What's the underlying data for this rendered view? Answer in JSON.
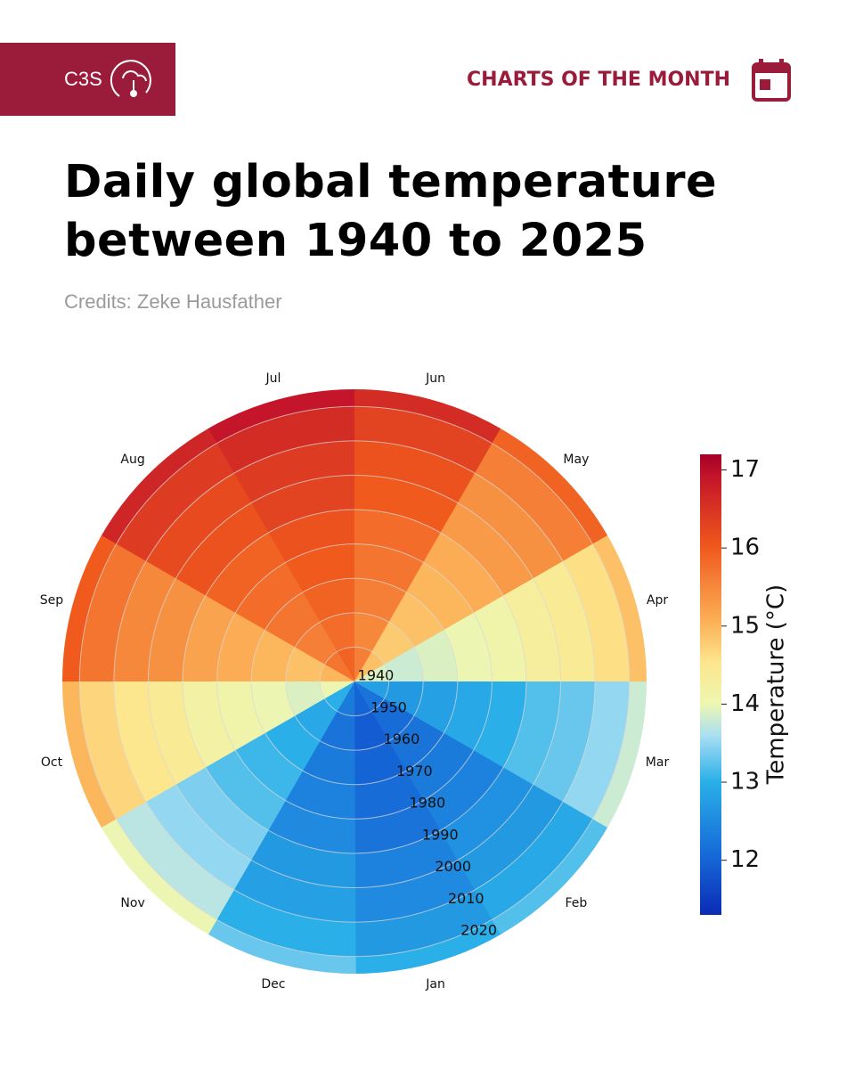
{
  "header": {
    "logo": "C3S",
    "section": "CHARTS OF THE MONTH"
  },
  "chart_data": {
    "type": "polar-heatmap",
    "title": "Daily global temperature between 1940 to 2025",
    "subtitle": "Credits: Zeke Hausfather",
    "categories": [
      "Jan",
      "Feb",
      "Mar",
      "Apr",
      "May",
      "Jun",
      "Jul",
      "Aug",
      "Sep",
      "Oct",
      "Nov",
      "Dec"
    ],
    "rlim": [
      1940,
      2025
    ],
    "rticks": [
      1940,
      1950,
      1960,
      1970,
      1980,
      1990,
      2000,
      2010,
      2020
    ],
    "values": [
      [
        12.0,
        12.2,
        12.8,
        13.9,
        14.9,
        15.6,
        15.9,
        15.7,
        15.0,
        14.0,
        13.0,
        12.3
      ],
      [
        11.9,
        12.1,
        12.7,
        13.8,
        14.8,
        15.5,
        15.8,
        15.6,
        14.9,
        13.9,
        12.9,
        12.2
      ],
      [
        12.0,
        12.2,
        12.8,
        13.9,
        14.9,
        15.6,
        15.9,
        15.7,
        15.0,
        14.0,
        13.0,
        12.3
      ],
      [
        12.1,
        12.3,
        12.9,
        14.0,
        15.0,
        15.7,
        16.0,
        15.8,
        15.1,
        14.1,
        13.1,
        12.4
      ],
      [
        12.2,
        12.4,
        13.0,
        14.1,
        15.1,
        15.8,
        16.1,
        15.9,
        15.2,
        14.2,
        13.2,
        12.5
      ],
      [
        12.4,
        12.6,
        13.2,
        14.3,
        15.3,
        16.0,
        16.3,
        16.1,
        15.4,
        14.4,
        13.4,
        12.7
      ],
      [
        12.5,
        12.7,
        13.3,
        14.4,
        15.4,
        16.1,
        16.4,
        16.2,
        15.5,
        14.5,
        13.5,
        12.8
      ],
      [
        12.7,
        12.9,
        13.5,
        14.6,
        15.6,
        16.3,
        16.6,
        16.4,
        15.7,
        14.7,
        13.7,
        13.0
      ],
      [
        13.0,
        13.2,
        13.8,
        14.9,
        15.9,
        16.6,
        16.9,
        16.7,
        16.0,
        15.0,
        14.0,
        13.3
      ]
    ],
    "clim": [
      11.3,
      17.2
    ],
    "cticks": [
      12,
      13,
      14,
      15,
      16,
      17
    ],
    "colorbar_label": "Temperature (°C)",
    "grid": true
  }
}
